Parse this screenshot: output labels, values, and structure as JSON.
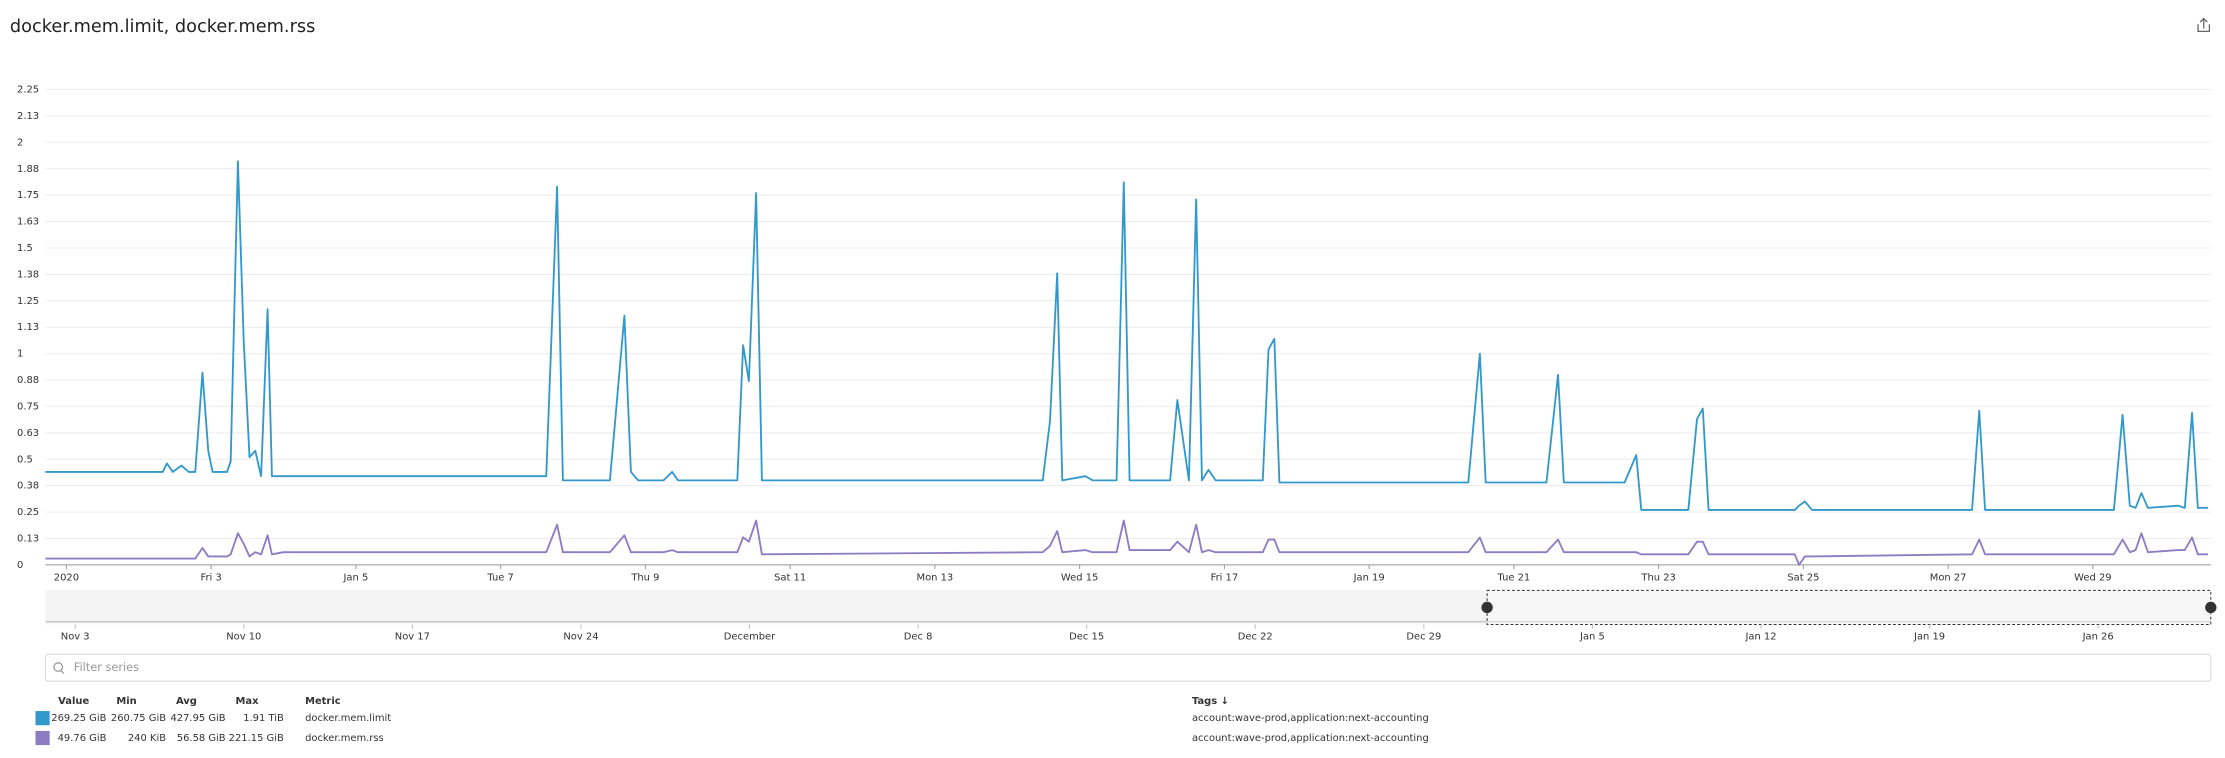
{
  "header": {
    "title": "docker.mem.limit, docker.mem.rss"
  },
  "chart_data": {
    "type": "line",
    "x": [
      0.71,
      2.33,
      2.39,
      2.47,
      2.59,
      2.69,
      2.78,
      2.88,
      2.96,
      3.02,
      3.22,
      3.27,
      3.37,
      3.45,
      3.53,
      3.61,
      3.69,
      3.78,
      3.84,
      4.0,
      7.63,
      7.78,
      7.86,
      8.51,
      8.71,
      8.8,
      8.9,
      9.25,
      9.37,
      9.45,
      10.27,
      10.35,
      10.43,
      10.53,
      10.61,
      14.49,
      14.59,
      14.69,
      14.76,
      15.08,
      15.18,
      15.51,
      15.61,
      15.69,
      16.25,
      16.35,
      16.51,
      16.61,
      16.69,
      16.78,
      16.88,
      17.53,
      17.61,
      17.69,
      17.76,
      20.37,
      20.53,
      20.61,
      21.45,
      21.61,
      21.69,
      22.53,
      22.69,
      22.76,
      23.41,
      23.53,
      23.61,
      23.69,
      24.88,
      24.94,
      25.02,
      25.12,
      27.33,
      27.43,
      27.51,
      29.29,
      29.41,
      29.51,
      29.59,
      29.67,
      29.76,
      30.18,
      30.27,
      30.37,
      30.45,
      30.59
    ],
    "xlim": [
      0.71,
      30.59
    ],
    "xticks": [
      {
        "value": 1,
        "label": "2020"
      },
      {
        "value": 3,
        "label": "Fri 3"
      },
      {
        "value": 5,
        "label": "Jan 5"
      },
      {
        "value": 7,
        "label": "Tue 7"
      },
      {
        "value": 9,
        "label": "Thu 9"
      },
      {
        "value": 11,
        "label": "Sat 11"
      },
      {
        "value": 13,
        "label": "Mon 13"
      },
      {
        "value": 15,
        "label": "Wed 15"
      },
      {
        "value": 17,
        "label": "Fri 17"
      },
      {
        "value": 19,
        "label": "Jan 19"
      },
      {
        "value": 21,
        "label": "Tue 21"
      },
      {
        "value": 23,
        "label": "Thu 23"
      },
      {
        "value": 25,
        "label": "Sat 25"
      },
      {
        "value": 27,
        "label": "Mon 27"
      },
      {
        "value": 29,
        "label": "Wed 29"
      }
    ],
    "ylim": [
      0,
      2.25
    ],
    "yticks": [
      0,
      {
        "value": 0.125,
        "label": "0.13"
      },
      0.25,
      {
        "value": 0.375,
        "label": "0.38"
      },
      0.5,
      {
        "value": 0.625,
        "label": "0.63"
      },
      0.75,
      {
        "value": 0.875,
        "label": "0.88"
      },
      1,
      {
        "value": 1.125,
        "label": "1.13"
      },
      1.25,
      {
        "value": 1.375,
        "label": "1.38"
      },
      1.5,
      {
        "value": 1.625,
        "label": "1.63"
      },
      1.75,
      {
        "value": 1.875,
        "label": "1.88"
      },
      2,
      {
        "value": 2.125,
        "label": "2.13"
      },
      2.25
    ],
    "grid": true,
    "series": [
      {
        "name": "docker.mem.limit",
        "color": "#3399cc",
        "values": [
          0.44,
          0.44,
          0.48,
          0.44,
          0.47,
          0.44,
          0.44,
          0.91,
          0.54,
          0.44,
          0.44,
          0.49,
          1.91,
          1.06,
          0.51,
          0.54,
          0.42,
          1.21,
          0.42,
          0.42,
          0.42,
          1.79,
          0.4,
          0.4,
          1.18,
          0.44,
          0.4,
          0.4,
          0.44,
          0.4,
          0.4,
          1.04,
          0.87,
          1.76,
          0.4,
          0.4,
          0.68,
          1.38,
          0.4,
          0.42,
          0.4,
          0.4,
          1.81,
          0.4,
          0.4,
          0.78,
          0.4,
          1.73,
          0.4,
          0.45,
          0.4,
          0.4,
          1.02,
          1.07,
          0.39,
          0.39,
          1.0,
          0.39,
          0.39,
          0.9,
          0.39,
          0.39,
          0.52,
          0.26,
          0.26,
          0.69,
          0.74,
          0.26,
          0.26,
          0.28,
          0.3,
          0.26,
          0.26,
          0.73,
          0.26,
          0.26,
          0.71,
          0.28,
          0.27,
          0.34,
          0.27,
          0.28,
          0.27,
          0.72,
          0.27,
          0.27
        ]
      },
      {
        "name": "docker.mem.rss",
        "color": "#8e7cc3",
        "values": [
          0.03,
          0.03,
          0.03,
          0.03,
          0.03,
          0.03,
          0.03,
          0.08,
          0.04,
          0.04,
          0.04,
          0.05,
          0.15,
          0.1,
          0.04,
          0.06,
          0.05,
          0.14,
          0.05,
          0.06,
          0.06,
          0.19,
          0.06,
          0.06,
          0.14,
          0.06,
          0.06,
          0.06,
          0.07,
          0.06,
          0.06,
          0.13,
          0.11,
          0.21,
          0.05,
          0.06,
          0.09,
          0.16,
          0.06,
          0.07,
          0.06,
          0.06,
          0.21,
          0.07,
          0.07,
          0.11,
          0.06,
          0.19,
          0.06,
          0.07,
          0.06,
          0.06,
          0.12,
          0.12,
          0.06,
          0.06,
          0.13,
          0.06,
          0.06,
          0.12,
          0.06,
          0.06,
          0.06,
          0.05,
          0.05,
          0.11,
          0.11,
          0.05,
          0.05,
          0.0,
          0.04,
          0.04,
          0.05,
          0.12,
          0.05,
          0.05,
          0.12,
          0.06,
          0.07,
          0.15,
          0.06,
          0.07,
          0.07,
          0.13,
          0.05,
          0.05
        ]
      }
    ]
  },
  "navigator": {
    "labels": [
      "Nov 3",
      "Nov 10",
      "Nov 17",
      "Nov 24",
      "December",
      "Dec 8",
      "Dec 15",
      "Dec 22",
      "Dec 29",
      "Jan 5",
      "Jan 12",
      "Jan 19",
      "Jan 26"
    ]
  },
  "filter": {
    "placeholder": "Filter series"
  },
  "legend_table": {
    "columns": [
      "Value",
      "Min",
      "Avg",
      "Max",
      "Metric",
      "Tags ↓"
    ],
    "rows": [
      {
        "value": "269.25 GiB",
        "min": "260.75 GiB",
        "avg": "427.95 GiB",
        "max": "1.91 TiB",
        "tags": "account:wave-prod,application:next-accounting"
      },
      {
        "value": "49.76 GiB",
        "min": "240 KiB",
        "avg": "56.58 GiB",
        "max": "221.15 GiB",
        "tags": "account:wave-prod,application:next-accounting"
      }
    ]
  }
}
